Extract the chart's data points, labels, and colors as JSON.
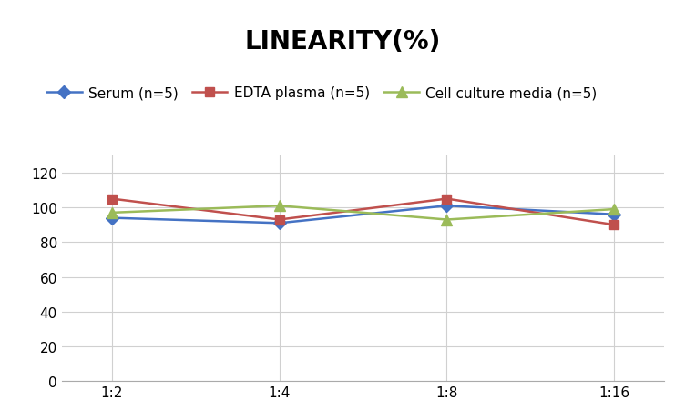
{
  "title": "LINEARITY(%)",
  "x_labels": [
    "1:2",
    "1:4",
    "1:8",
    "1:16"
  ],
  "series": [
    {
      "label": "Serum (n=5)",
      "values": [
        94,
        91,
        101,
        96
      ],
      "color": "#4472C4",
      "marker": "D",
      "markersize": 7
    },
    {
      "label": "EDTA plasma (n=5)",
      "values": [
        105,
        93,
        105,
        90
      ],
      "color": "#C0504D",
      "marker": "s",
      "markersize": 7
    },
    {
      "label": "Cell culture media (n=5)",
      "values": [
        97,
        101,
        93,
        99
      ],
      "color": "#9BBB59",
      "marker": "^",
      "markersize": 8
    }
  ],
  "ylim": [
    0,
    130
  ],
  "yticks": [
    0,
    20,
    40,
    60,
    80,
    100,
    120
  ],
  "title_fontsize": 20,
  "legend_fontsize": 11,
  "tick_fontsize": 11,
  "background_color": "#ffffff",
  "grid_color": "#d0d0d0"
}
